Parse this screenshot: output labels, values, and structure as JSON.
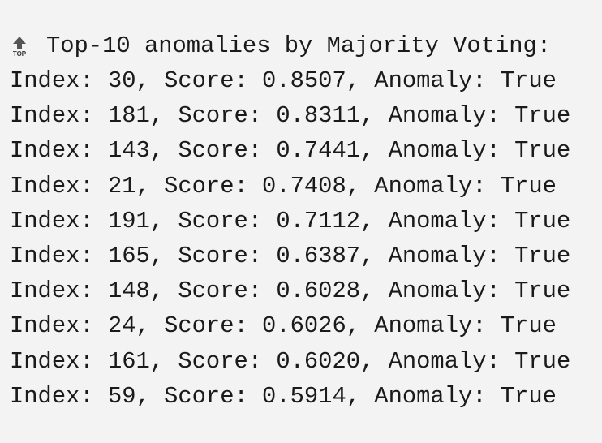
{
  "output": {
    "icon_label": "TOP",
    "title": "Top-10 anomalies by Majority Voting:",
    "lines": [
      "Index: 30, Score: 0.8507, Anomaly: True",
      "Index: 181, Score: 0.8311, Anomaly: True",
      "Index: 143, Score: 0.7441, Anomaly: True",
      "Index: 21, Score: 0.7408, Anomaly: True",
      "Index: 191, Score: 0.7112, Anomaly: True",
      "Index: 165, Score: 0.6387, Anomaly: True",
      "Index: 148, Score: 0.6028, Anomaly: True",
      "Index: 24, Score: 0.6026, Anomaly: True",
      "Index: 161, Score: 0.6020, Anomaly: True",
      "Index: 59, Score: 0.5914, Anomaly: True"
    ]
  }
}
